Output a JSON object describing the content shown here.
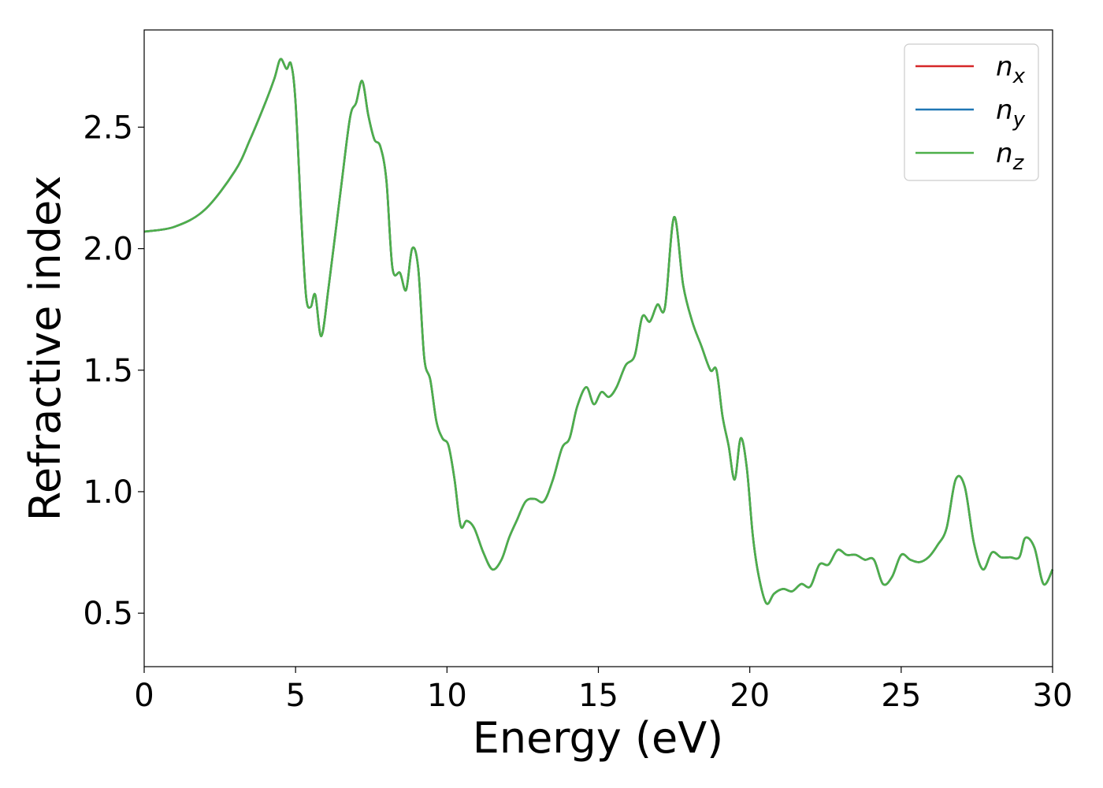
{
  "chart_data": {
    "type": "line",
    "xlabel": "Energy (eV)",
    "ylabel": "Refractive index",
    "xlim": [
      0,
      30
    ],
    "ylim": [
      0.28,
      2.9
    ],
    "xticks": [
      0,
      5,
      10,
      15,
      20,
      25,
      30
    ],
    "xtick_labels": [
      "0",
      "5",
      "10",
      "15",
      "20",
      "25",
      "30"
    ],
    "yticks": [
      0.5,
      1.0,
      1.5,
      2.0,
      2.5
    ],
    "ytick_labels": [
      "0.5",
      "1.0",
      "1.5",
      "2.0",
      "2.5"
    ],
    "grid": false,
    "legend_position": "top-right",
    "series": [
      {
        "name": "n",
        "subscript": "x",
        "color": "#d62728"
      },
      {
        "name": "n",
        "subscript": "y",
        "color": "#1f77b4"
      },
      {
        "name": "n",
        "subscript": "z",
        "color": "#4daf4a"
      }
    ],
    "x": [
      0,
      1,
      2,
      3,
      3.5,
      4,
      4.3,
      4.5,
      4.7,
      4.85,
      5.0,
      5.2,
      5.35,
      5.5,
      5.65,
      5.85,
      6.1,
      6.5,
      6.8,
      7.0,
      7.2,
      7.4,
      7.6,
      7.8,
      8.0,
      8.2,
      8.45,
      8.65,
      8.85,
      9.05,
      9.25,
      9.45,
      9.65,
      9.85,
      10.05,
      10.25,
      10.45,
      10.65,
      10.9,
      11.2,
      11.5,
      11.8,
      12.05,
      12.3,
      12.6,
      12.9,
      13.2,
      13.5,
      13.8,
      14.05,
      14.3,
      14.6,
      14.85,
      15.1,
      15.35,
      15.6,
      15.9,
      16.2,
      16.45,
      16.7,
      16.95,
      17.2,
      17.5,
      17.8,
      18.1,
      18.4,
      18.7,
      18.9,
      19.1,
      19.3,
      19.5,
      19.7,
      19.9,
      20.1,
      20.3,
      20.55,
      20.8,
      21.1,
      21.4,
      21.7,
      22.0,
      22.3,
      22.6,
      22.9,
      23.2,
      23.5,
      23.8,
      24.1,
      24.4,
      24.7,
      25.0,
      25.3,
      25.6,
      25.9,
      26.2,
      26.5,
      26.8,
      27.1,
      27.4,
      27.7,
      28.0,
      28.3,
      28.6,
      28.9,
      29.1,
      29.4,
      29.7,
      30.0
    ],
    "y": [
      2.07,
      2.09,
      2.16,
      2.32,
      2.45,
      2.6,
      2.7,
      2.78,
      2.74,
      2.76,
      2.6,
      2.1,
      1.8,
      1.76,
      1.81,
      1.64,
      1.85,
      2.25,
      2.54,
      2.6,
      2.69,
      2.55,
      2.45,
      2.42,
      2.28,
      1.92,
      1.9,
      1.83,
      2.0,
      1.92,
      1.55,
      1.46,
      1.29,
      1.22,
      1.19,
      1.05,
      0.86,
      0.88,
      0.85,
      0.75,
      0.68,
      0.72,
      0.81,
      0.88,
      0.96,
      0.97,
      0.96,
      1.05,
      1.18,
      1.22,
      1.35,
      1.43,
      1.36,
      1.41,
      1.39,
      1.43,
      1.52,
      1.56,
      1.72,
      1.7,
      1.77,
      1.76,
      2.13,
      1.85,
      1.7,
      1.6,
      1.5,
      1.5,
      1.31,
      1.19,
      1.05,
      1.22,
      1.1,
      0.82,
      0.65,
      0.54,
      0.58,
      0.6,
      0.59,
      0.62,
      0.61,
      0.7,
      0.7,
      0.76,
      0.74,
      0.74,
      0.72,
      0.72,
      0.62,
      0.65,
      0.74,
      0.72,
      0.71,
      0.73,
      0.78,
      0.85,
      1.05,
      1.02,
      0.79,
      0.68,
      0.75,
      0.73,
      0.73,
      0.73,
      0.81,
      0.77,
      0.62,
      0.68
    ]
  }
}
